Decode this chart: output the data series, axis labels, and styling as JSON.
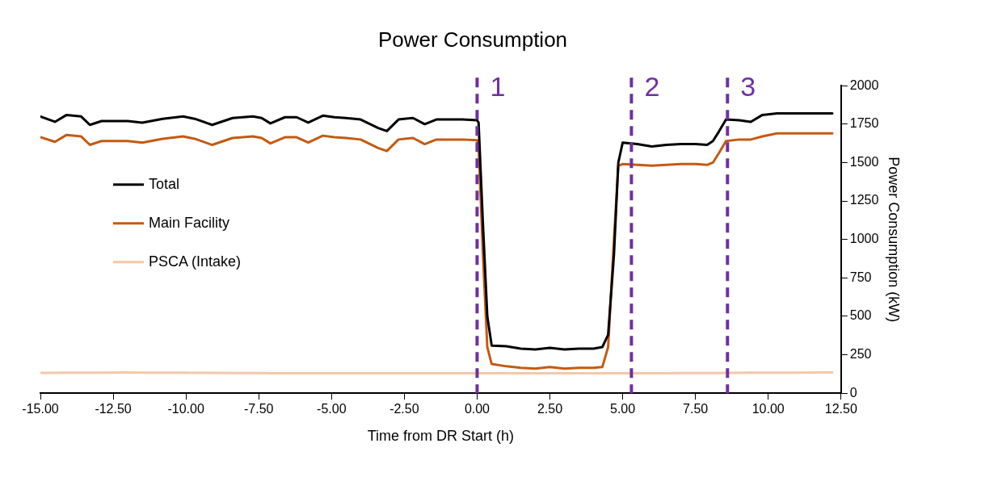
{
  "chart_data": {
    "type": "line",
    "title": "Power Consumption",
    "xlabel": "Time from DR Start (h)",
    "ylabel": "Power Consumption (kW)",
    "x": [
      -15,
      -14.5,
      -14.1,
      -13.6,
      -13.3,
      -12.9,
      -12,
      -11.5,
      -10.8,
      -10.1,
      -9.7,
      -9.1,
      -8.4,
      -7.7,
      -7.4,
      -7.1,
      -6.6,
      -6.2,
      -5.8,
      -5.3,
      -4.9,
      -4.5,
      -4,
      -3.4,
      -3.1,
      -2.7,
      -2.2,
      -1.8,
      -1.4,
      -0.5,
      0,
      0.05,
      0.2,
      0.35,
      0.5,
      1,
      1.5,
      2,
      2.5,
      3,
      3.5,
      4,
      4.3,
      4.5,
      4.7,
      4.85,
      5,
      5.5,
      6,
      6.5,
      7,
      7.5,
      7.9,
      8.1,
      8.3,
      8.55,
      9,
      9.4,
      9.8,
      10.3,
      11,
      12.2
    ],
    "series": [
      {
        "name": "Total",
        "color": "#000000",
        "values": [
          1800,
          1765,
          1810,
          1800,
          1745,
          1770,
          1770,
          1760,
          1785,
          1800,
          1785,
          1745,
          1790,
          1800,
          1790,
          1755,
          1795,
          1795,
          1760,
          1805,
          1795,
          1790,
          1780,
          1725,
          1705,
          1780,
          1790,
          1750,
          1780,
          1780,
          1775,
          1760,
          1100,
          500,
          310,
          305,
          290,
          285,
          295,
          285,
          290,
          290,
          300,
          380,
          900,
          1500,
          1630,
          1620,
          1605,
          1615,
          1620,
          1620,
          1615,
          1640,
          1700,
          1780,
          1775,
          1765,
          1810,
          1820,
          1820,
          1820
        ]
      },
      {
        "name": "Main Facility",
        "color": "#c55a11",
        "values": [
          1665,
          1635,
          1680,
          1670,
          1615,
          1640,
          1640,
          1630,
          1655,
          1670,
          1655,
          1615,
          1660,
          1670,
          1660,
          1625,
          1665,
          1665,
          1630,
          1675,
          1665,
          1660,
          1650,
          1595,
          1575,
          1650,
          1660,
          1620,
          1650,
          1650,
          1645,
          1620,
          900,
          300,
          190,
          175,
          165,
          160,
          170,
          160,
          165,
          165,
          170,
          300,
          1000,
          1480,
          1490,
          1485,
          1480,
          1485,
          1490,
          1490,
          1485,
          1500,
          1560,
          1640,
          1650,
          1650,
          1670,
          1690,
          1690,
          1690
        ]
      },
      {
        "name": "PSCA (Intake)",
        "color": "#f4c7a8",
        "values": [
          132,
          132,
          133,
          133,
          133,
          134,
          135,
          134,
          133,
          133,
          132,
          132,
          131,
          131,
          131,
          130,
          130,
          130,
          130,
          130,
          130,
          130,
          130,
          130,
          130,
          130,
          130,
          130,
          130,
          130,
          130,
          130,
          130,
          130,
          130,
          130,
          130,
          130,
          130,
          130,
          130,
          130,
          130,
          130,
          130,
          130,
          130,
          130,
          130,
          130,
          131,
          131,
          131,
          131,
          131,
          132,
          132,
          133,
          133,
          134,
          134,
          135
        ]
      }
    ],
    "xlim": [
      -15,
      12.5
    ],
    "xticks": [
      {
        "value": -15,
        "label": "-15.00"
      },
      {
        "value": -12.5,
        "label": "-12.50"
      },
      {
        "value": -10,
        "label": "-10.00"
      },
      {
        "value": -7.5,
        "label": "-7.50"
      },
      {
        "value": -5,
        "label": "-5.00"
      },
      {
        "value": -2.5,
        "label": "-2.50"
      },
      {
        "value": 0,
        "label": "0.00"
      },
      {
        "value": 2.5,
        "label": "2.50"
      },
      {
        "value": 5,
        "label": "5.00"
      },
      {
        "value": 7.5,
        "label": "7.50"
      },
      {
        "value": 10,
        "label": "10.00"
      },
      {
        "value": 12.5,
        "label": "12.50"
      }
    ],
    "ylim": [
      0,
      2000
    ],
    "yticks": [
      0,
      250,
      500,
      750,
      1000,
      1250,
      1500,
      1750,
      2000
    ],
    "ref_lines": [
      {
        "axis": "x",
        "value": 0,
        "color": "#7030a0",
        "line_style": "dashed"
      },
      {
        "axis": "x",
        "value": 5.3,
        "color": "#7030a0",
        "line_style": "dashed"
      },
      {
        "axis": "x",
        "value": 8.6,
        "color": "#7030a0",
        "line_style": "dashed"
      }
    ],
    "annotations": [
      "1",
      "2",
      "3"
    ],
    "grid": false,
    "legend": "left",
    "marker": "none",
    "line_style": "solid"
  }
}
